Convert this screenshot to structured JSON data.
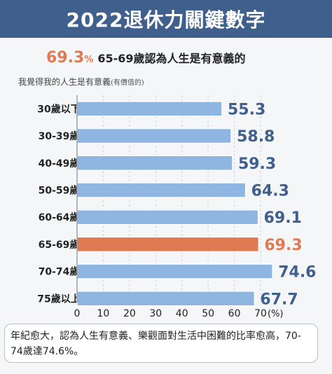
{
  "header": {
    "title": "2022退休力關鍵數字"
  },
  "headline": {
    "value": "69.3",
    "percent_sign": "%",
    "text": "65-69歲認為人生是有意義的"
  },
  "subtitle": {
    "main": "我覺得我的人生是有意義",
    "qualifier": "(有價值的)"
  },
  "chart_data": {
    "type": "bar",
    "orientation": "horizontal",
    "categories": [
      "30歲以下",
      "30-39歲",
      "40-49歲",
      "50-59歲",
      "60-64歲",
      "65-69歲",
      "70-74歲",
      "75歲以上"
    ],
    "values": [
      55.3,
      58.8,
      59.3,
      64.3,
      69.1,
      69.3,
      74.6,
      67.7
    ],
    "value_labels": [
      "55.3",
      "58.8",
      "59.3",
      "64.3",
      "69.1",
      "69.3",
      "74.6",
      "67.7"
    ],
    "highlight_index": 5,
    "xlim": [
      0,
      70
    ],
    "x_ticks": [
      "0",
      "10",
      "20",
      "30",
      "40",
      "50",
      "60",
      "70"
    ],
    "x_unit": "(%)",
    "grid": "vertical dashed",
    "colors": {
      "bar": "#8eb6e0",
      "bar_stroke": "#ffffff",
      "highlight": "#e07a52",
      "label": "#3f5f8c",
      "highlight_label": "#e07a52"
    }
  },
  "note": {
    "text": "年紀愈大，認為人生有意義、樂觀面對生活中困難的比率愈高，70-74歲達74.6%。"
  }
}
